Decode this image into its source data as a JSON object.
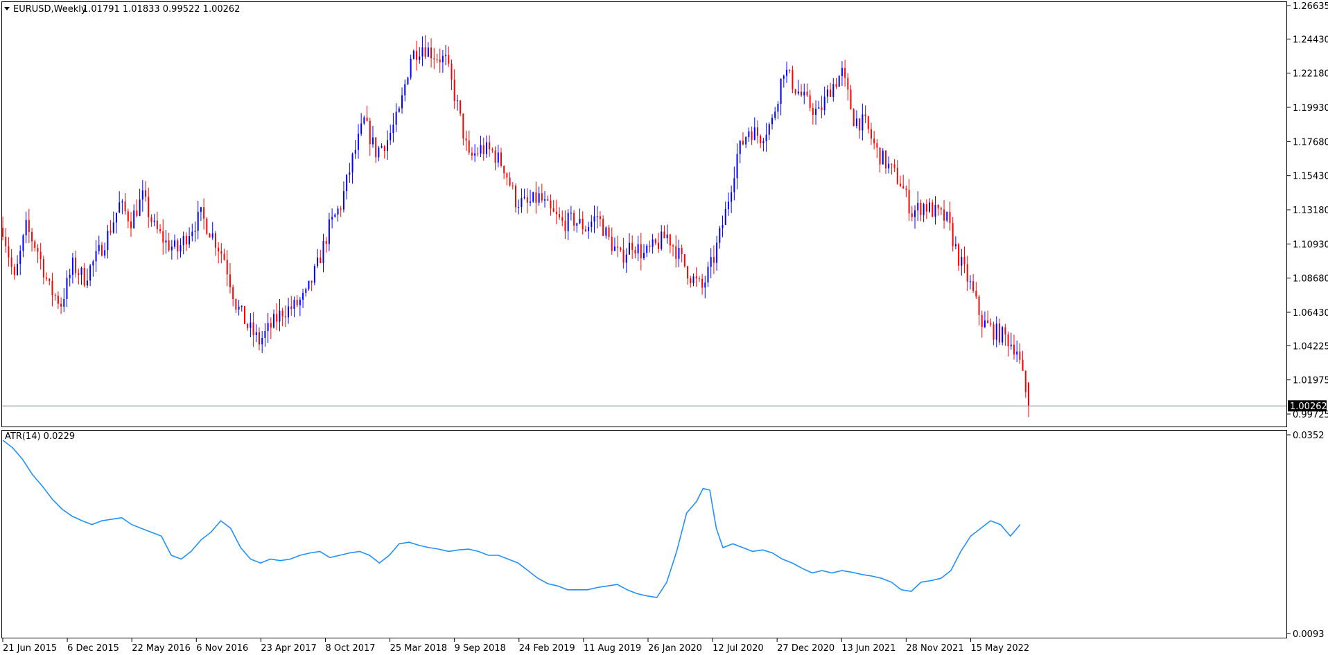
{
  "header": {
    "symbol_timeframe": "EURUSD,Weekly",
    "ohlc": "1.01791 1.01833 0.99522 1.00262"
  },
  "indicator": {
    "label": "ATR(14) 0.0229"
  },
  "colors": {
    "background": "#ffffff",
    "bull_candle": "#0000ff",
    "bear_candle": "#ff0000",
    "atr_line": "#1e90ff",
    "price_line": "#778899",
    "axis": "#000000"
  },
  "chart_data": [
    {
      "type": "candlestick",
      "title": "EURUSD,Weekly",
      "current_price_label": "1.00262",
      "current_price": 1.00262,
      "y_ticks": [
        "1.26635",
        "1.24430",
        "1.22180",
        "1.19930",
        "1.17680",
        "1.15430",
        "1.13180",
        "1.10930",
        "1.08680",
        "1.06430",
        "1.04225",
        "1.01975",
        "0.99725"
      ],
      "ylim": [
        0.99725,
        1.26635
      ],
      "grid": false,
      "x_tick_labels": [
        "21 Jun 2015",
        "6 Dec 2015",
        "22 May 2016",
        "6 Nov 2016",
        "23 Apr 2017",
        "8 Oct 2017",
        "25 Mar 2018",
        "9 Sep 2018",
        "24 Feb 2019",
        "11 Aug 2019",
        "26 Jan 2020",
        "12 Jul 2020",
        "27 Dec 2020",
        "13 Jun 2021",
        "28 Nov 2021",
        "15 May 2022"
      ],
      "approx_close_path": [
        [
          0,
          1.12
        ],
        [
          4,
          1.085
        ],
        [
          8,
          1.12
        ],
        [
          12,
          1.105
        ],
        [
          16,
          1.08
        ],
        [
          20,
          1.07
        ],
        [
          24,
          1.095
        ],
        [
          28,
          1.087
        ],
        [
          32,
          1.1
        ],
        [
          36,
          1.115
        ],
        [
          40,
          1.135
        ],
        [
          44,
          1.125
        ],
        [
          48,
          1.14
        ],
        [
          52,
          1.12
        ],
        [
          56,
          1.11
        ],
        [
          60,
          1.105
        ],
        [
          64,
          1.118
        ],
        [
          68,
          1.128
        ],
        [
          72,
          1.115
        ],
        [
          76,
          1.1
        ],
        [
          80,
          1.07
        ],
        [
          84,
          1.055
        ],
        [
          88,
          1.045
        ],
        [
          92,
          1.055
        ],
        [
          96,
          1.065
        ],
        [
          100,
          1.068
        ],
        [
          104,
          1.075
        ],
        [
          108,
          1.095
        ],
        [
          112,
          1.12
        ],
        [
          116,
          1.135
        ],
        [
          120,
          1.165
        ],
        [
          124,
          1.19
        ],
        [
          128,
          1.17
        ],
        [
          132,
          1.178
        ],
        [
          136,
          1.195
        ],
        [
          140,
          1.233
        ],
        [
          144,
          1.24
        ],
        [
          148,
          1.234
        ],
        [
          152,
          1.23
        ],
        [
          156,
          1.2
        ],
        [
          160,
          1.165
        ],
        [
          164,
          1.172
        ],
        [
          168,
          1.17
        ],
        [
          172,
          1.16
        ],
        [
          176,
          1.138
        ],
        [
          180,
          1.135
        ],
        [
          184,
          1.14
        ],
        [
          188,
          1.13
        ],
        [
          192,
          1.123
        ],
        [
          196,
          1.125
        ],
        [
          200,
          1.12
        ],
        [
          204,
          1.128
        ],
        [
          208,
          1.112
        ],
        [
          212,
          1.1
        ],
        [
          216,
          1.11
        ],
        [
          220,
          1.102
        ],
        [
          224,
          1.108
        ],
        [
          228,
          1.115
        ],
        [
          232,
          1.102
        ],
        [
          236,
          1.088
        ],
        [
          240,
          1.08
        ],
        [
          244,
          1.1
        ],
        [
          248,
          1.13
        ],
        [
          252,
          1.168
        ],
        [
          256,
          1.185
        ],
        [
          260,
          1.18
        ],
        [
          264,
          1.19
        ],
        [
          268,
          1.225
        ],
        [
          272,
          1.212
        ],
        [
          276,
          1.202
        ],
        [
          280,
          1.195
        ],
        [
          284,
          1.212
        ],
        [
          288,
          1.222
        ],
        [
          292,
          1.192
        ],
        [
          296,
          1.188
        ],
        [
          300,
          1.17
        ],
        [
          304,
          1.16
        ],
        [
          308,
          1.15
        ],
        [
          312,
          1.13
        ],
        [
          316,
          1.135
        ],
        [
          320,
          1.13
        ],
        [
          324,
          1.125
        ],
        [
          328,
          1.1
        ],
        [
          332,
          1.082
        ],
        [
          336,
          1.058
        ],
        [
          340,
          1.052
        ],
        [
          344,
          1.048
        ],
        [
          348,
          1.04
        ],
        [
          352,
          1.002
        ]
      ],
      "last_index": 352
    },
    {
      "type": "line",
      "title": "ATR(14) 0.0229",
      "y_ticks": [
        "0.0352",
        "0.0093"
      ],
      "ylim": [
        0.0093,
        0.0352
      ],
      "series": [
        {
          "name": "ATR(14)",
          "points": [
            [
              0,
              0.0345
            ],
            [
              3,
              0.0335
            ],
            [
              6,
              0.032
            ],
            [
              9,
              0.03
            ],
            [
              12,
              0.0285
            ],
            [
              15,
              0.0268
            ],
            [
              18,
              0.0255
            ],
            [
              21,
              0.0246
            ],
            [
              24,
              0.024
            ],
            [
              27,
              0.0235
            ],
            [
              30,
              0.024
            ],
            [
              33,
              0.0242
            ],
            [
              36,
              0.0244
            ],
            [
              39,
              0.0235
            ],
            [
              42,
              0.023
            ],
            [
              45,
              0.0225
            ],
            [
              48,
              0.022
            ],
            [
              51,
              0.0195
            ],
            [
              54,
              0.019
            ],
            [
              57,
              0.02
            ],
            [
              60,
              0.0215
            ],
            [
              63,
              0.0225
            ],
            [
              66,
              0.024
            ],
            [
              69,
              0.023
            ],
            [
              72,
              0.0205
            ],
            [
              75,
              0.019
            ],
            [
              78,
              0.0185
            ],
            [
              81,
              0.019
            ],
            [
              84,
              0.0188
            ],
            [
              87,
              0.019
            ],
            [
              90,
              0.0195
            ],
            [
              93,
              0.0198
            ],
            [
              96,
              0.02
            ],
            [
              99,
              0.0192
            ],
            [
              102,
              0.0195
            ],
            [
              105,
              0.0198
            ],
            [
              108,
              0.02
            ],
            [
              111,
              0.0195
            ],
            [
              114,
              0.0185
            ],
            [
              117,
              0.0195
            ],
            [
              120,
              0.021
            ],
            [
              123,
              0.0212
            ],
            [
              126,
              0.0208
            ],
            [
              129,
              0.0205
            ],
            [
              132,
              0.0203
            ],
            [
              135,
              0.02
            ],
            [
              138,
              0.0202
            ],
            [
              141,
              0.0203
            ],
            [
              144,
              0.02
            ],
            [
              147,
              0.0195
            ],
            [
              150,
              0.0195
            ],
            [
              153,
              0.019
            ],
            [
              156,
              0.0185
            ],
            [
              159,
              0.0175
            ],
            [
              162,
              0.0165
            ],
            [
              165,
              0.0158
            ],
            [
              168,
              0.0155
            ],
            [
              171,
              0.015
            ],
            [
              174,
              0.015
            ],
            [
              177,
              0.015
            ],
            [
              180,
              0.0153
            ],
            [
              183,
              0.0155
            ],
            [
              186,
              0.0157
            ],
            [
              189,
              0.015
            ],
            [
              192,
              0.0145
            ],
            [
              195,
              0.0142
            ],
            [
              198,
              0.014
            ],
            [
              201,
              0.016
            ],
            [
              204,
              0.02
            ],
            [
              207,
              0.025
            ],
            [
              210,
              0.0265
            ],
            [
              212,
              0.0282
            ],
            [
              214,
              0.028
            ],
            [
              216,
              0.023
            ],
            [
              218,
              0.0205
            ],
            [
              221,
              0.021
            ],
            [
              224,
              0.0205
            ],
            [
              227,
              0.02
            ],
            [
              230,
              0.0202
            ],
            [
              233,
              0.0198
            ],
            [
              236,
              0.019
            ],
            [
              239,
              0.0185
            ],
            [
              242,
              0.0178
            ],
            [
              245,
              0.0172
            ],
            [
              248,
              0.0175
            ],
            [
              251,
              0.0172
            ],
            [
              254,
              0.0175
            ],
            [
              257,
              0.0173
            ],
            [
              260,
              0.017
            ],
            [
              263,
              0.0168
            ],
            [
              266,
              0.0165
            ],
            [
              269,
              0.016
            ],
            [
              272,
              0.015
            ],
            [
              275,
              0.0148
            ],
            [
              278,
              0.016
            ],
            [
              281,
              0.0162
            ],
            [
              284,
              0.0165
            ],
            [
              287,
              0.0175
            ],
            [
              290,
              0.02
            ],
            [
              293,
              0.022
            ],
            [
              296,
              0.023
            ],
            [
              299,
              0.024
            ],
            [
              302,
              0.0235
            ],
            [
              305,
              0.022
            ],
            [
              308,
              0.0235
            ]
          ]
        }
      ],
      "last_index": 308
    }
  ]
}
